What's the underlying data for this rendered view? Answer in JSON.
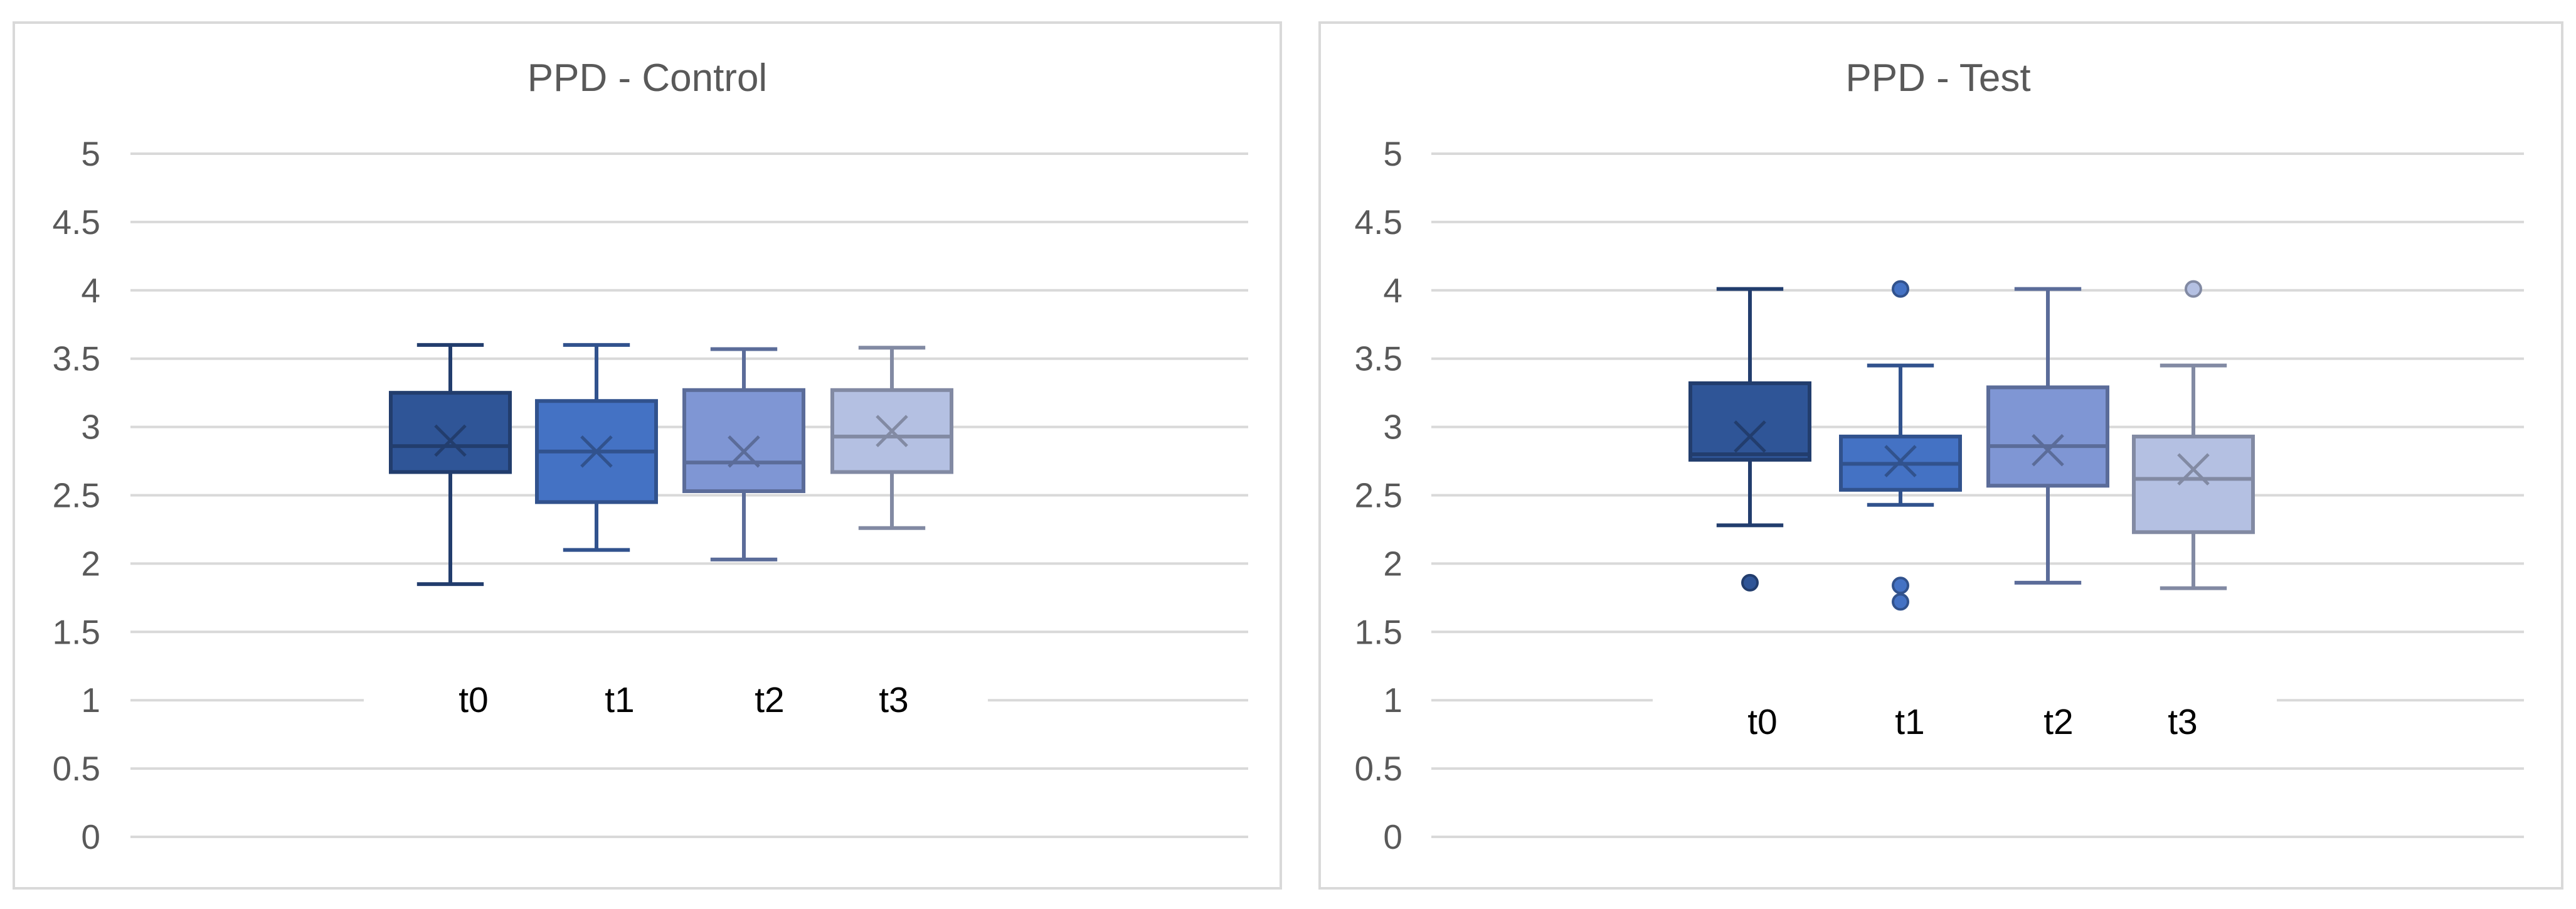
{
  "chart_data": [
    {
      "type": "box",
      "title": "PPD - Control",
      "ylim": [
        0,
        5
      ],
      "yticks": [
        "0",
        "0.5",
        "1",
        "1.5",
        "2",
        "2.5",
        "3",
        "3.5",
        "4",
        "4.5",
        "5"
      ],
      "grid": true,
      "legend": "inside-bottom-center",
      "categories": [
        "t0",
        "t1",
        "t2",
        "t3"
      ],
      "series": [
        {
          "name": "t0",
          "color": "#2f5597",
          "min": 1.85,
          "q1": 2.67,
          "median": 2.86,
          "q3": 3.25,
          "max": 3.6,
          "mean": 2.9,
          "outliers": []
        },
        {
          "name": "t1",
          "color": "#4472c4",
          "min": 2.1,
          "q1": 2.45,
          "median": 2.82,
          "q3": 3.19,
          "max": 3.6,
          "mean": 2.82,
          "outliers": []
        },
        {
          "name": "t2",
          "color": "#7f96d4",
          "min": 2.03,
          "q1": 2.53,
          "median": 2.74,
          "q3": 3.27,
          "max": 3.57,
          "mean": 2.82,
          "outliers": []
        },
        {
          "name": "t3",
          "color": "#b4c0e2",
          "min": 2.26,
          "q1": 2.67,
          "median": 2.93,
          "q3": 3.27,
          "max": 3.58,
          "mean": 2.97,
          "outliers": []
        }
      ]
    },
    {
      "type": "box",
      "title": "PPD - Test",
      "ylim": [
        0,
        5
      ],
      "yticks": [
        "0",
        "0.5",
        "1",
        "1.5",
        "2",
        "2.5",
        "3",
        "3.5",
        "4",
        "4.5",
        "5"
      ],
      "grid": true,
      "legend": "inside-bottom-center",
      "categories": [
        "t0",
        "t1",
        "t2",
        "t3"
      ],
      "series": [
        {
          "name": "t0",
          "color": "#2f5597",
          "min": 2.28,
          "q1": 2.76,
          "median": 2.8,
          "q3": 3.32,
          "max": 4.01,
          "mean": 2.93,
          "outliers": [
            1.86
          ]
        },
        {
          "name": "t1",
          "color": "#4472c4",
          "min": 2.43,
          "q1": 2.54,
          "median": 2.73,
          "q3": 2.93,
          "max": 3.45,
          "mean": 2.75,
          "outliers": [
            4.01,
            1.84,
            1.72
          ]
        },
        {
          "name": "t2",
          "color": "#7f96d4",
          "min": 1.86,
          "q1": 2.57,
          "median": 2.86,
          "q3": 3.29,
          "max": 4.01,
          "mean": 2.83,
          "outliers": []
        },
        {
          "name": "t3",
          "color": "#b4c0e2",
          "min": 1.82,
          "q1": 2.23,
          "median": 2.62,
          "q3": 2.93,
          "max": 3.45,
          "mean": 2.69,
          "outliers": [
            4.01
          ]
        }
      ]
    }
  ]
}
